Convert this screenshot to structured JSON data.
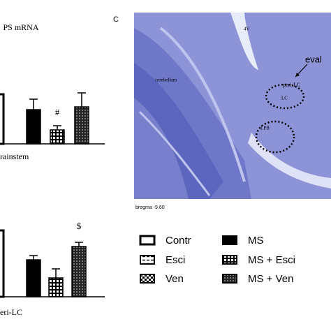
{
  "chart_data": [
    {
      "type": "bar",
      "title": "PS mRNA",
      "xlabel": "brainstem",
      "categories": [
        null,
        null,
        null,
        null
      ],
      "values": [
        0.71,
        0.49,
        0.2,
        0.53
      ],
      "errors": [
        null,
        0.15,
        0.06,
        0.2
      ],
      "annotation": "#"
    },
    {
      "type": "bar",
      "xlabel": "peri-LC",
      "categories": [
        null,
        null,
        null,
        null
      ],
      "values": [
        0.95,
        0.53,
        0.27,
        0.72
      ],
      "errors": [
        null,
        0.06,
        0.13,
        0.06
      ],
      "annotation": "$"
    }
  ],
  "image": {
    "panel_label": "C",
    "labels": [
      "4V",
      "cerebellum",
      "eval",
      "peri-LC",
      "LC",
      "LPB"
    ],
    "caption": "bregma -9.60"
  },
  "legend": {
    "items": [
      "Contr",
      "Esci",
      "Ven",
      "MS",
      "MS + Esci",
      "MS + Ven"
    ]
  }
}
